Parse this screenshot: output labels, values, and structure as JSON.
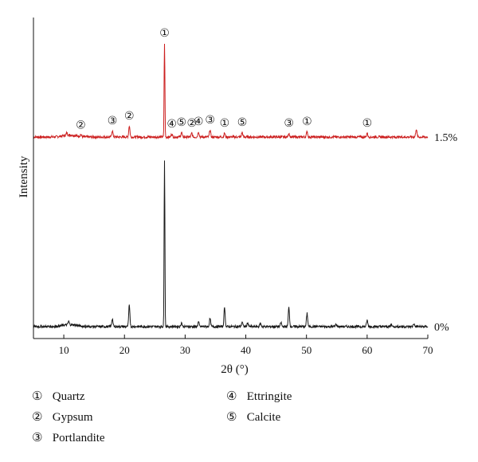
{
  "chart_data": {
    "type": "line",
    "xlabel": "2θ (°)",
    "ylabel": "Intensity",
    "xlim": [
      5,
      70
    ],
    "xticks": [
      10,
      20,
      30,
      40,
      50,
      60,
      70
    ],
    "grid": false,
    "series": [
      {
        "name": "1.5%",
        "color": "#cc1f1f",
        "baseline": 8,
        "noise": 1.5,
        "peaks": [
          {
            "x": 10.5,
            "h": 3,
            "label": ""
          },
          {
            "x": 12.8,
            "h": 2.5,
            "label": "②"
          },
          {
            "x": 18.0,
            "h": 8,
            "label": "③"
          },
          {
            "x": 20.8,
            "h": 14,
            "label": "②"
          },
          {
            "x": 26.6,
            "h": 118,
            "label": "①"
          },
          {
            "x": 27.8,
            "h": 4,
            "label": "④"
          },
          {
            "x": 29.4,
            "h": 6,
            "label": "⑤"
          },
          {
            "x": 31.1,
            "h": 5,
            "label": "②"
          },
          {
            "x": 32.2,
            "h": 7,
            "label": "④"
          },
          {
            "x": 34.1,
            "h": 9,
            "label": "③"
          },
          {
            "x": 36.5,
            "h": 5,
            "label": "①"
          },
          {
            "x": 39.4,
            "h": 6,
            "label": "⑤"
          },
          {
            "x": 47.1,
            "h": 5,
            "label": "③"
          },
          {
            "x": 50.1,
            "h": 7,
            "label": "①"
          },
          {
            "x": 60.0,
            "h": 5,
            "label": "①"
          },
          {
            "x": 68.1,
            "h": 10,
            "label": ""
          }
        ]
      },
      {
        "name": "0%",
        "color": "#1a1a1a",
        "baseline": 8,
        "noise": 1.5,
        "peaks": [
          {
            "x": 10.8,
            "h": 4,
            "label": ""
          },
          {
            "x": 18.0,
            "h": 10,
            "label": ""
          },
          {
            "x": 20.8,
            "h": 27,
            "label": ""
          },
          {
            "x": 26.6,
            "h": 210,
            "label": ""
          },
          {
            "x": 29.4,
            "h": 5,
            "label": ""
          },
          {
            "x": 32.2,
            "h": 6,
            "label": ""
          },
          {
            "x": 34.1,
            "h": 10,
            "label": ""
          },
          {
            "x": 36.5,
            "h": 24,
            "label": ""
          },
          {
            "x": 39.4,
            "h": 6,
            "label": ""
          },
          {
            "x": 40.3,
            "h": 5,
            "label": ""
          },
          {
            "x": 42.4,
            "h": 4,
            "label": ""
          },
          {
            "x": 45.8,
            "h": 5,
            "label": ""
          },
          {
            "x": 47.1,
            "h": 24,
            "label": ""
          },
          {
            "x": 50.1,
            "h": 17,
            "label": ""
          },
          {
            "x": 54.9,
            "h": 3,
            "label": ""
          },
          {
            "x": 60.0,
            "h": 8,
            "label": ""
          },
          {
            "x": 64.0,
            "h": 3,
            "label": ""
          },
          {
            "x": 67.7,
            "h": 4,
            "label": ""
          }
        ]
      }
    ],
    "legend": [
      {
        "symbol": "①",
        "label": "Quartz"
      },
      {
        "symbol": "②",
        "label": "Gypsum"
      },
      {
        "symbol": "③",
        "label": "Portlandite"
      },
      {
        "symbol": "④",
        "label": "Ettringite"
      },
      {
        "symbol": "⑤",
        "label": "Calcite"
      }
    ]
  }
}
